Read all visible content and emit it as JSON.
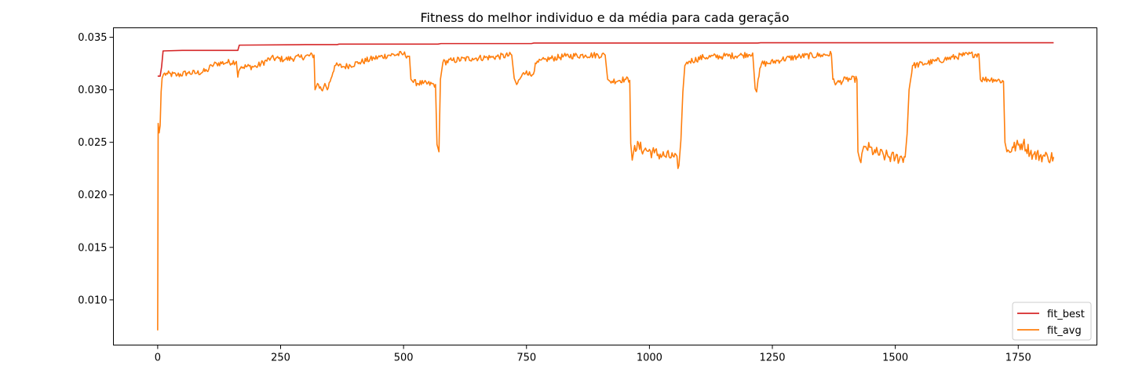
{
  "chart_data": {
    "type": "line",
    "title": "Fitness do melhor individuo e da média para cada geração",
    "xlabel": "",
    "ylabel": "",
    "xlim": [
      -90,
      1910
    ],
    "ylim": [
      0.0057,
      0.0359
    ],
    "xticks": [
      0,
      250,
      500,
      750,
      1000,
      1250,
      1500,
      1750
    ],
    "yticks": [
      0.01,
      0.015,
      0.02,
      0.025,
      0.03,
      0.035
    ],
    "xtick_labels": [
      "0",
      "250",
      "500",
      "750",
      "1000",
      "1250",
      "1500",
      "1750"
    ],
    "ytick_labels": [
      "0.010",
      "0.015",
      "0.020",
      "0.025",
      "0.030",
      "0.035"
    ],
    "grid": false,
    "legend_position": "lower-right",
    "series": [
      {
        "name": "fit_best",
        "color": "#d62728",
        "x": [
          0,
          5,
          8,
          11,
          50,
          163,
          166,
          300,
          365,
          369,
          570,
          576,
          760,
          765,
          1220,
          1226,
          1822
        ],
        "y": [
          0.0313,
          0.0313,
          0.0322,
          0.0337,
          0.03375,
          0.03375,
          0.03425,
          0.0343,
          0.0343,
          0.03435,
          0.03435,
          0.0344,
          0.0344,
          0.03445,
          0.03445,
          0.03448,
          0.03448
        ]
      },
      {
        "name": "fit_avg",
        "color": "#ff7f0e",
        "x": [
          0,
          1,
          3,
          5,
          7,
          9,
          12,
          20,
          40,
          60,
          80,
          100,
          110,
          120,
          140,
          160,
          163,
          165,
          170,
          200,
          230,
          260,
          290,
          318,
          320,
          325,
          335,
          340,
          345,
          360,
          380,
          410,
          440,
          470,
          500,
          512,
          515,
          520,
          540,
          565,
          568,
          572,
          575,
          580,
          600,
          640,
          680,
          720,
          725,
          730,
          740,
          750,
          760,
          770,
          790,
          830,
          870,
          910,
          915,
          920,
          950,
          960,
          962,
          965,
          970,
          990,
          1010,
          1030,
          1050,
          1060,
          1064,
          1068,
          1072,
          1080,
          1110,
          1150,
          1190,
          1210,
          1215,
          1218,
          1221,
          1228,
          1240,
          1270,
          1310,
          1350,
          1370,
          1373,
          1380,
          1400,
          1422,
          1424,
          1428,
          1440,
          1460,
          1480,
          1500,
          1520,
          1524,
          1528,
          1535,
          1560,
          1600,
          1640,
          1670,
          1673,
          1680,
          1700,
          1720,
          1723,
          1727,
          1740,
          1760,
          1780,
          1800,
          1810,
          1822
        ],
        "y": [
          0.0071,
          0.0268,
          0.0259,
          0.0266,
          0.0298,
          0.0311,
          0.0315,
          0.0315,
          0.0314,
          0.0316,
          0.0316,
          0.0318,
          0.0323,
          0.0325,
          0.0326,
          0.0327,
          0.0312,
          0.0318,
          0.0322,
          0.0322,
          0.033,
          0.0329,
          0.0331,
          0.0333,
          0.03,
          0.0306,
          0.0299,
          0.0306,
          0.03,
          0.0323,
          0.0322,
          0.0326,
          0.033,
          0.0333,
          0.0334,
          0.0332,
          0.031,
          0.0307,
          0.0306,
          0.0305,
          0.0248,
          0.0241,
          0.031,
          0.0326,
          0.0328,
          0.033,
          0.0331,
          0.0333,
          0.0311,
          0.0305,
          0.0313,
          0.0318,
          0.0313,
          0.0325,
          0.0329,
          0.0332,
          0.0333,
          0.0333,
          0.031,
          0.0308,
          0.031,
          0.0309,
          0.0249,
          0.0233,
          0.0247,
          0.0243,
          0.024,
          0.0237,
          0.0236,
          0.0228,
          0.0252,
          0.0298,
          0.0323,
          0.0327,
          0.0331,
          0.0332,
          0.0333,
          0.0335,
          0.0301,
          0.0298,
          0.031,
          0.0325,
          0.0325,
          0.0329,
          0.0332,
          0.0333,
          0.0334,
          0.031,
          0.0306,
          0.031,
          0.031,
          0.0241,
          0.0233,
          0.0246,
          0.024,
          0.0237,
          0.0235,
          0.0236,
          0.0258,
          0.03,
          0.0323,
          0.0325,
          0.0329,
          0.0333,
          0.0334,
          0.031,
          0.031,
          0.031,
          0.0308,
          0.025,
          0.0241,
          0.0245,
          0.0249,
          0.0238,
          0.0237,
          0.0236,
          0.0236
        ]
      }
    ]
  }
}
